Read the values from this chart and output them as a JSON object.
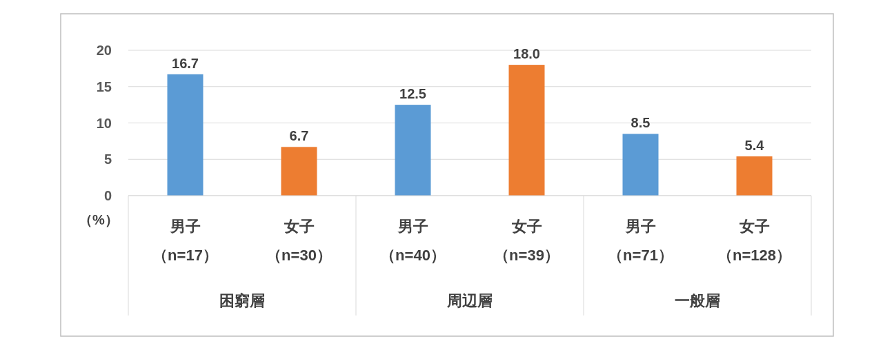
{
  "chart_data": {
    "type": "bar",
    "ylabel": "（%）",
    "categories": [
      "男子（n=17）",
      "女子（n=30）",
      "男子（n=40）",
      "女子（n=39）",
      "男子（n=71）",
      "女子（n=128）"
    ],
    "values": [
      16.7,
      6.7,
      12.5,
      18.0,
      8.5,
      5.4
    ],
    "value_labels": [
      "16.7",
      "6.7",
      "12.5",
      "18.0",
      "8.5",
      "5.4"
    ],
    "colors": [
      "#5b9bd5",
      "#ed7d31",
      "#5b9bd5",
      "#ed7d31",
      "#5b9bd5",
      "#ed7d31"
    ],
    "annotations": [
      "困窮層",
      "周辺層",
      "一般層"
    ],
    "ylim": [
      0,
      20
    ],
    "yticks": [
      0,
      5,
      10,
      15,
      20
    ],
    "grid": "y"
  }
}
